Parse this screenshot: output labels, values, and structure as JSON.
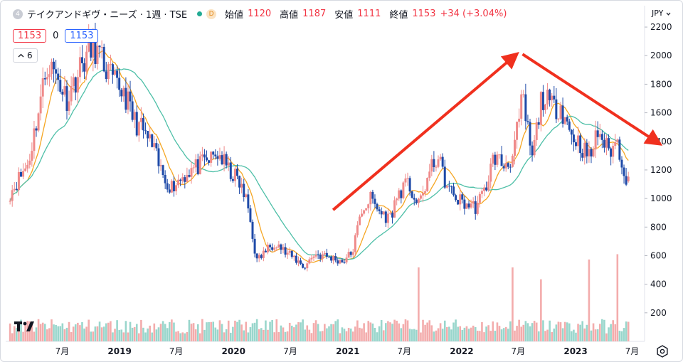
{
  "legend": {
    "symbol_badge": "4",
    "title": "テイクアンドギヴ・ニーズ · 1週 · TSE",
    "session_badge": "D",
    "open_label": "始値",
    "open": "1120",
    "high_label": "高値",
    "high": "1187",
    "low_label": "安値",
    "low": "1111",
    "close_label": "終値",
    "close": "1153",
    "change": "+34 (+3.04%)"
  },
  "indicator_row": {
    "value_a": "1153",
    "separator_value": "0",
    "value_b": "1153"
  },
  "collapse_button": {
    "icon": "chevron-up-icon",
    "count": "6"
  },
  "currency": "JPY",
  "colors": {
    "up": "#ef8a8a",
    "down": "#1e4aa8",
    "ma_fast": "#f5a623",
    "ma_slow": "#4dbfa7",
    "volume_up": "#f2a3a3",
    "volume_down": "#8ed1c6",
    "arrow": "#f0301e"
  },
  "chart_data": {
    "type": "candlestick",
    "interval": "1 week",
    "y_axis": {
      "ticks": [
        "200",
        "400",
        "600",
        "800",
        "1000",
        "1200",
        "1400",
        "1600",
        "1800",
        "2000",
        "2200"
      ],
      "range": [
        0,
        2260
      ]
    },
    "x_axis": {
      "ticks": [
        "7月",
        "2019",
        "7月",
        "2020",
        "7月",
        "2021",
        "7月",
        "2022",
        "7月",
        "2023",
        "7月"
      ]
    },
    "anchors": [
      [
        "2018-01",
        1040
      ],
      [
        "2018-03",
        1250
      ],
      [
        "2018-05",
        1950
      ],
      [
        "2018-06",
        1850
      ],
      [
        "2018-07",
        1700
      ],
      [
        "2018-09",
        2000
      ],
      [
        "2018-10",
        2050
      ],
      [
        "2018-12",
        1800
      ],
      [
        "2019-01",
        1750
      ],
      [
        "2019-02",
        1550
      ],
      [
        "2019-03",
        1480
      ],
      [
        "2019-04",
        1370
      ],
      [
        "2019-05",
        1180
      ],
      [
        "2019-06",
        1080
      ],
      [
        "2019-08",
        1200
      ],
      [
        "2019-09",
        1230
      ],
      [
        "2019-11",
        1310
      ],
      [
        "2019-12",
        1200
      ],
      [
        "2020-01",
        1130
      ],
      [
        "2020-02",
        960
      ],
      [
        "2020-03",
        560
      ],
      [
        "2020-04",
        640
      ],
      [
        "2020-05",
        700
      ],
      [
        "2020-06",
        620
      ],
      [
        "2020-07",
        580
      ],
      [
        "2020-08",
        520
      ],
      [
        "2020-09",
        610
      ],
      [
        "2020-10",
        600
      ],
      [
        "2020-11",
        580
      ],
      [
        "2020-12",
        560
      ],
      [
        "2021-01",
        620
      ],
      [
        "2021-02",
        920
      ],
      [
        "2021-03",
        1000
      ],
      [
        "2021-04",
        900
      ],
      [
        "2021-05",
        860
      ],
      [
        "2021-06",
        1050
      ],
      [
        "2021-07",
        1100
      ],
      [
        "2021-08",
        940
      ],
      [
        "2021-09",
        1150
      ],
      [
        "2021-10",
        1300
      ],
      [
        "2021-11",
        1080
      ],
      [
        "2021-12",
        1000
      ],
      [
        "2022-01",
        960
      ],
      [
        "2022-02",
        940
      ],
      [
        "2022-03",
        1050
      ],
      [
        "2022-04",
        1300
      ],
      [
        "2022-05",
        1230
      ],
      [
        "2022-06",
        1300
      ],
      [
        "2022-07",
        1700
      ],
      [
        "2022-08",
        1280
      ],
      [
        "2022-09",
        1720
      ],
      [
        "2022-10",
        1640
      ],
      [
        "2022-11",
        1650
      ],
      [
        "2022-12",
        1460
      ],
      [
        "2023-01",
        1380
      ],
      [
        "2023-02",
        1280
      ],
      [
        "2023-03",
        1480
      ],
      [
        "2023-04",
        1330
      ],
      [
        "2023-05",
        1390
      ],
      [
        "2023-06",
        1120
      ],
      [
        "2023-06-20",
        1153
      ]
    ],
    "gap_after": "2023-05",
    "last_candle": {
      "open": 1120,
      "high": 1187,
      "low": 1111,
      "close": 1153
    },
    "volume_spikes": [
      {
        "date": "2021-08",
        "value": 560
      },
      {
        "date": "2022-06",
        "value": 560
      },
      {
        "date": "2022-09",
        "value": 470
      },
      {
        "date": "2023-02",
        "value": 620
      },
      {
        "date": "2023-05",
        "value": 660
      }
    ],
    "annotations": [
      {
        "type": "arrow",
        "from": [
          "2020-11",
          920
        ],
        "to": [
          "2022-06",
          1990
        ]
      },
      {
        "type": "arrow",
        "from": [
          "2022-07",
          2010
        ],
        "to": [
          "2023-09",
          1400
        ]
      }
    ],
    "moving_averages": [
      {
        "color": "#f5a623",
        "period": 9
      },
      {
        "color": "#4dbfa7",
        "period": 26
      }
    ]
  }
}
